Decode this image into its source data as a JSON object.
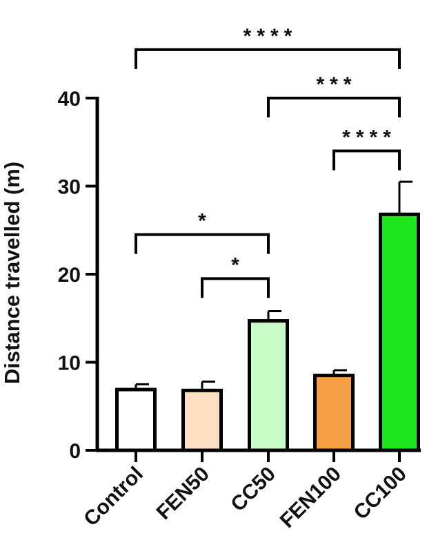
{
  "chart_data": {
    "type": "bar",
    "title": "",
    "xlabel": "",
    "ylabel": "Distance travelled (m)",
    "ylim": [
      0,
      40
    ],
    "yticks": [
      "0",
      "10",
      "20",
      "30",
      "40"
    ],
    "ytick_values": [
      0,
      10,
      20,
      30,
      40
    ],
    "categories": [
      "Control",
      "FEN50",
      "CC50",
      "FEN100",
      "CC100"
    ],
    "values": [
      6.9,
      6.8,
      14.7,
      8.5,
      26.8
    ],
    "error": [
      0.6,
      1.0,
      1.1,
      0.6,
      3.7
    ],
    "colors": [
      "#ffffff",
      "#fde0c3",
      "#c8fdc8",
      "#f5a045",
      "#1ee61e"
    ],
    "edge_color": "#000000",
    "grid": false,
    "legend": "none",
    "significance": [
      {
        "from": 0,
        "to": 4,
        "label": "****",
        "y": 45.5
      },
      {
        "from": 2,
        "to": 4,
        "label": "***",
        "y": 40.0
      },
      {
        "from": 3,
        "to": 4,
        "label": "****",
        "y": 34.0
      },
      {
        "from": 0,
        "to": 2,
        "label": "*",
        "y": 24.5
      },
      {
        "from": 1,
        "to": 2,
        "label": "*",
        "y": 19.5
      }
    ]
  }
}
